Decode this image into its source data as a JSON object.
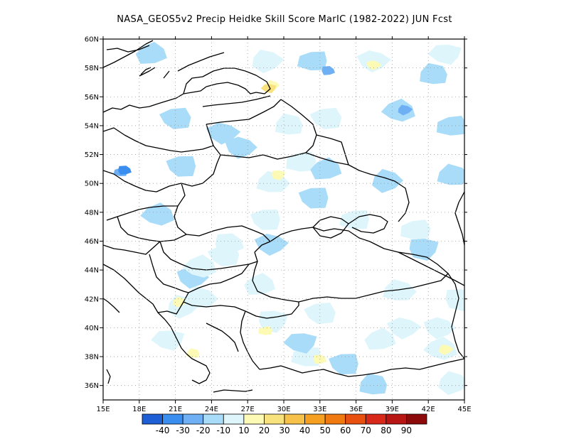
{
  "title": "NASA_GEOS5v2 Precip Heidke Skill Score MarIC (1982-2022) JUN Fcst",
  "chart_data": {
    "type": "heatmap",
    "title": "NASA_GEOS5v2 Precip Heidke Skill Score MarIC (1982-2022) JUN Fcst",
    "x_ticks": [
      "15E",
      "18E",
      "21E",
      "24E",
      "27E",
      "30E",
      "33E",
      "36E",
      "39E",
      "42E",
      "45E"
    ],
    "y_ticks": [
      "36N",
      "38N",
      "40N",
      "42N",
      "44N",
      "46N",
      "48N",
      "50N",
      "52N",
      "54N",
      "56N",
      "58N",
      "60N"
    ],
    "xlim": [
      15,
      45
    ],
    "ylim": [
      35,
      60
    ],
    "grid": true,
    "colorbar": {
      "labels": [
        "-40",
        "-30",
        "-20",
        "-10",
        "10",
        "20",
        "30",
        "40",
        "50",
        "60",
        "70",
        "80",
        "90"
      ],
      "colors": [
        "#1f5fd6",
        "#3a8ef0",
        "#6fb0f5",
        "#a9dcf8",
        "#def6fb",
        "#fcfab4",
        "#f8e27e",
        "#f6c24a",
        "#f5a020",
        "#f07a10",
        "#e85010",
        "#d8281a",
        "#b81515",
        "#8c0a0a"
      ]
    },
    "regions": [
      {
        "lon": 16.5,
        "lat": 50.8,
        "class": -2
      },
      {
        "lon": 16.8,
        "lat": 50.9,
        "class": -3
      },
      {
        "lon": 21.0,
        "lat": 54.5,
        "class": -1
      },
      {
        "lon": 21.5,
        "lat": 51.2,
        "class": -1
      },
      {
        "lon": 19.0,
        "lat": 59.0,
        "class": -1
      },
      {
        "lon": 25.0,
        "lat": 53.5,
        "class": -1
      },
      {
        "lon": 26.5,
        "lat": 52.5,
        "class": -1
      },
      {
        "lon": 19.5,
        "lat": 47.8,
        "class": -1
      },
      {
        "lon": 28.5,
        "lat": 58.5,
        "class": 1
      },
      {
        "lon": 29.0,
        "lat": 56.8,
        "class": 2
      },
      {
        "lon": 28.8,
        "lat": 56.6,
        "class": 3
      },
      {
        "lon": 30.5,
        "lat": 54.0,
        "class": 1
      },
      {
        "lon": 29.0,
        "lat": 50.0,
        "class": 1
      },
      {
        "lon": 29.5,
        "lat": 50.6,
        "class": 2
      },
      {
        "lon": 31.5,
        "lat": 51.5,
        "class": 1
      },
      {
        "lon": 32.5,
        "lat": 58.5,
        "class": -1
      },
      {
        "lon": 33.7,
        "lat": 57.8,
        "class": -2
      },
      {
        "lon": 33.5,
        "lat": 54.5,
        "class": 1
      },
      {
        "lon": 32.5,
        "lat": 49.0,
        "class": -1
      },
      {
        "lon": 33.5,
        "lat": 51.0,
        "class": -1
      },
      {
        "lon": 37.5,
        "lat": 58.5,
        "class": 1
      },
      {
        "lon": 37.5,
        "lat": 58.2,
        "class": 2
      },
      {
        "lon": 39.5,
        "lat": 55.0,
        "class": -1
      },
      {
        "lon": 40.0,
        "lat": 55.1,
        "class": -2
      },
      {
        "lon": 38.5,
        "lat": 50.2,
        "class": -1
      },
      {
        "lon": 43.5,
        "lat": 59.0,
        "class": 1
      },
      {
        "lon": 42.5,
        "lat": 57.5,
        "class": -1
      },
      {
        "lon": 44.0,
        "lat": 50.5,
        "class": -1
      },
      {
        "lon": 41.5,
        "lat": 45.5,
        "class": -1
      },
      {
        "lon": 41.0,
        "lat": 46.8,
        "class": 1
      },
      {
        "lon": 36.0,
        "lat": 47.5,
        "class": 1
      },
      {
        "lon": 25.5,
        "lat": 45.8,
        "class": 1
      },
      {
        "lon": 25.0,
        "lat": 45.0,
        "class": 1
      },
      {
        "lon": 28.5,
        "lat": 47.5,
        "class": 1
      },
      {
        "lon": 28.0,
        "lat": 43.0,
        "class": 1
      },
      {
        "lon": 29.0,
        "lat": 45.8,
        "class": -1
      },
      {
        "lon": 22.5,
        "lat": 43.5,
        "class": -1
      },
      {
        "lon": 23.0,
        "lat": 44.2,
        "class": 1
      },
      {
        "lon": 21.5,
        "lat": 41.5,
        "class": 1
      },
      {
        "lon": 21.3,
        "lat": 41.8,
        "class": 2
      },
      {
        "lon": 20.5,
        "lat": 39.2,
        "class": 1
      },
      {
        "lon": 22.5,
        "lat": 38.2,
        "class": 2
      },
      {
        "lon": 23.0,
        "lat": 42.0,
        "class": 1
      },
      {
        "lon": 29.0,
        "lat": 40.5,
        "class": 1
      },
      {
        "lon": 28.5,
        "lat": 39.8,
        "class": 2
      },
      {
        "lon": 32.0,
        "lat": 38.0,
        "class": 1
      },
      {
        "lon": 33.0,
        "lat": 37.8,
        "class": 2
      },
      {
        "lon": 33.0,
        "lat": 41.0,
        "class": 1
      },
      {
        "lon": 35.0,
        "lat": 37.5,
        "class": -1
      },
      {
        "lon": 38.0,
        "lat": 39.2,
        "class": 1
      },
      {
        "lon": 40.0,
        "lat": 40.0,
        "class": 1
      },
      {
        "lon": 43.0,
        "lat": 40.0,
        "class": 1
      },
      {
        "lon": 43.0,
        "lat": 38.5,
        "class": 1
      },
      {
        "lon": 43.4,
        "lat": 38.5,
        "class": 2
      },
      {
        "lon": 44.0,
        "lat": 36.2,
        "class": 1
      },
      {
        "lon": 31.5,
        "lat": 39.0,
        "class": -1
      },
      {
        "lon": 37.5,
        "lat": 36.0,
        "class": -1
      },
      {
        "lon": 39.5,
        "lat": 42.5,
        "class": 1
      },
      {
        "lon": 44.5,
        "lat": 42.0,
        "class": 1
      },
      {
        "lon": 44.0,
        "lat": 54.0,
        "class": -1
      }
    ]
  }
}
